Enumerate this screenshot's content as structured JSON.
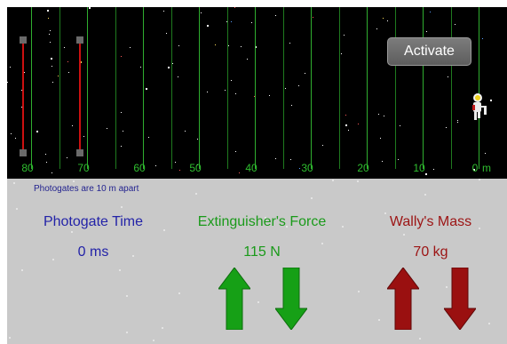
{
  "space": {
    "scale_labels": [
      "80",
      "70",
      "60",
      "50",
      "40",
      "30",
      "20",
      "10",
      "0"
    ],
    "unit": "m",
    "activate_label": "Activate"
  },
  "panel": {
    "note": "Photogates are 10 m apart",
    "photogate": {
      "title": "Photogate Time",
      "value": "0 ms"
    },
    "force": {
      "title": "Extinguisher's Force",
      "value": "115 N"
    },
    "mass": {
      "title": "Wally's Mass",
      "value": "70 kg"
    }
  },
  "colors": {
    "force_green": "#1a9a1a",
    "mass_red": "#9c1414",
    "time_blue": "#2323a8",
    "gate_red": "#cc1010"
  },
  "icons": [
    "astronaut-icon",
    "force-increase-arrow-icon",
    "force-decrease-arrow-icon",
    "mass-increase-arrow-icon",
    "mass-decrease-arrow-icon"
  ]
}
